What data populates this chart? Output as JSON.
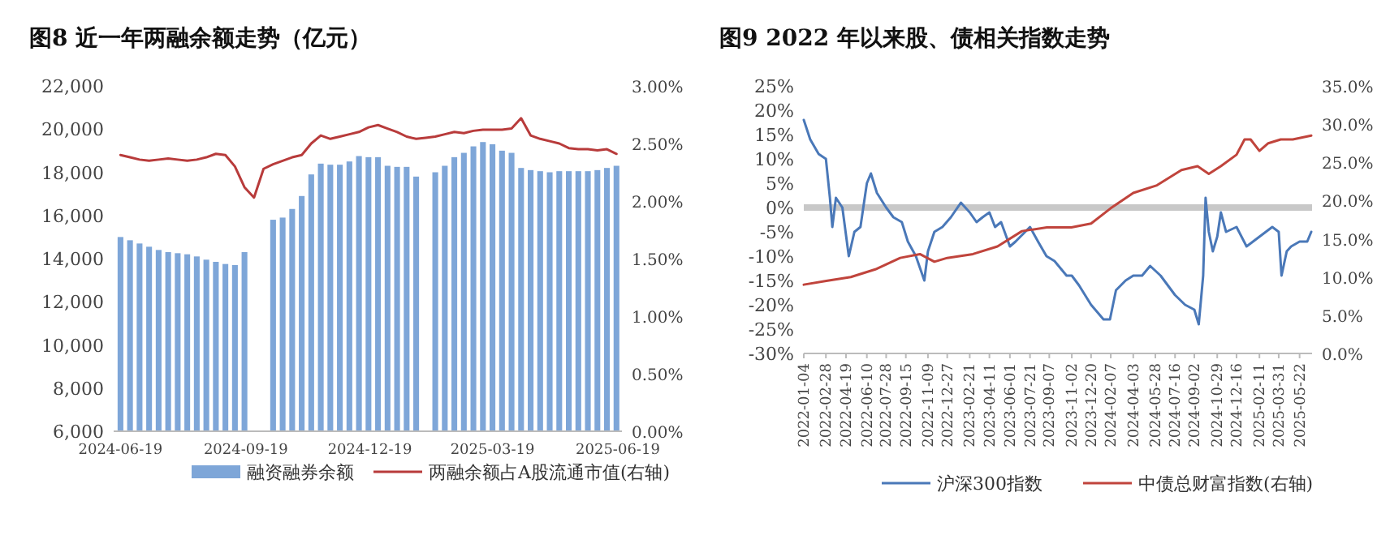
{
  "chart_data": [
    {
      "type": "bar",
      "title": "图8  近一年两融余额走势（亿元）",
      "legend": "bottom",
      "grid": false,
      "x": [
        "2024-06-19",
        "2024-06-26",
        "2024-07-03",
        "2024-07-10",
        "2024-07-17",
        "2024-07-24",
        "2024-07-31",
        "2024-08-07",
        "2024-08-14",
        "2024-08-21",
        "2024-08-28",
        "2024-09-04",
        "2024-09-11",
        "2024-09-18",
        "2024-09-25",
        "2024-10-02",
        "2024-10-09",
        "2024-10-16",
        "2024-10-23",
        "2024-10-30",
        "2024-11-06",
        "2024-11-13",
        "2024-11-20",
        "2024-11-27",
        "2024-12-04",
        "2024-12-11",
        "2024-12-18",
        "2024-12-25",
        "2025-01-01",
        "2025-01-08",
        "2025-01-15",
        "2025-01-22",
        "2025-01-29",
        "2025-02-05",
        "2025-02-12",
        "2025-02-19",
        "2025-02-26",
        "2025-03-05",
        "2025-03-12",
        "2025-03-19",
        "2025-03-26",
        "2025-04-02",
        "2025-04-09",
        "2025-04-16",
        "2025-04-23",
        "2025-04-30",
        "2025-05-07",
        "2025-05-14",
        "2025-05-21",
        "2025-05-28",
        "2025-06-04",
        "2025-06-11",
        "2025-06-18"
      ],
      "xlim": [
        "2024-06-14",
        "2025-06-22"
      ],
      "xticks": [
        "2024-06-19",
        "2024-09-19",
        "2024-12-19",
        "2025-03-19",
        "2025-06-19"
      ],
      "ylim": [
        6000,
        22000
      ],
      "yticks": [
        {
          "value": 6000,
          "label": "6,000"
        },
        {
          "value": 8000,
          "label": "8,000"
        },
        {
          "value": 10000,
          "label": "10,000"
        },
        {
          "value": 12000,
          "label": "12,000"
        },
        {
          "value": 14000,
          "label": "14,000"
        },
        {
          "value": 16000,
          "label": "16,000"
        },
        {
          "value": 18000,
          "label": "18,000"
        },
        {
          "value": 20000,
          "label": "20,000"
        },
        {
          "value": 22000,
          "label": "22,000"
        }
      ],
      "y2lim": [
        0,
        3
      ],
      "y2ticks": [
        {
          "value": 0,
          "label": "0.00%"
        },
        {
          "value": 0.5,
          "label": "0.50%"
        },
        {
          "value": 1,
          "label": "1.00%"
        },
        {
          "value": 1.5,
          "label": "1.50%"
        },
        {
          "value": 2,
          "label": "2.00%"
        },
        {
          "value": 2.5,
          "label": "2.50%"
        },
        {
          "value": 3,
          "label": "3.00%"
        }
      ],
      "series": [
        {
          "name": "融资融券余额",
          "color": "#7ea6d8",
          "values": [
            15000,
            14850,
            14700,
            14550,
            14400,
            14300,
            14250,
            14200,
            14100,
            13950,
            13850,
            13750,
            13700,
            14300,
            null,
            null,
            15800,
            15900,
            16300,
            16900,
            17900,
            18400,
            18350,
            18350,
            18500,
            18750,
            18700,
            18700,
            18300,
            18250,
            18250,
            17800,
            null,
            18000,
            18300,
            18700,
            18900,
            19200,
            19400,
            19300,
            19000,
            18900,
            18200,
            18100,
            18050,
            18000,
            18050,
            18050,
            18050,
            18050,
            18100,
            18200,
            18300
          ]
        },
        {
          "name": "两融余额占A股流通市值(右轴)",
          "type": "line",
          "axis": "y2",
          "color": "#b83b3b",
          "values": [
            2.4,
            2.38,
            2.36,
            2.35,
            2.36,
            2.37,
            2.36,
            2.35,
            2.36,
            2.38,
            2.41,
            2.4,
            2.3,
            2.12,
            2.03,
            2.28,
            2.32,
            2.35,
            2.38,
            2.4,
            2.5,
            2.57,
            2.54,
            2.56,
            2.58,
            2.6,
            2.64,
            2.66,
            2.63,
            2.6,
            2.56,
            2.54,
            2.55,
            2.56,
            2.58,
            2.6,
            2.59,
            2.61,
            2.62,
            2.62,
            2.62,
            2.63,
            2.72,
            2.57,
            2.54,
            2.52,
            2.5,
            2.46,
            2.45,
            2.45,
            2.44,
            2.45,
            2.41
          ]
        }
      ]
    },
    {
      "type": "line",
      "title": "图9  2022 年以来股、债相关指数走势",
      "legend": "bottom",
      "grid": false,
      "xlim": [
        "2022-01-04",
        "2025-06-22"
      ],
      "xticks": [
        "2022-01-04",
        "2022-02-28",
        "2022-04-19",
        "2022-06-10",
        "2022-07-28",
        "2022-09-15",
        "2022-11-09",
        "2022-12-27",
        "2023-02-21",
        "2023-04-11",
        "2023-06-01",
        "2023-07-21",
        "2023-09-07",
        "2023-11-02",
        "2023-12-20",
        "2024-02-07",
        "2024-04-03",
        "2024-05-28",
        "2024-07-16",
        "2024-09-02",
        "2024-10-29",
        "2024-12-16",
        "2025-02-11",
        "2025-03-31",
        "2025-05-22"
      ],
      "ylim": [
        -30,
        25
      ],
      "yticks": [
        {
          "value": -30,
          "label": "-30%"
        },
        {
          "value": -25,
          "label": "-25%"
        },
        {
          "value": -20,
          "label": "-20%"
        },
        {
          "value": -15,
          "label": "-15%"
        },
        {
          "value": -10,
          "label": "-10%"
        },
        {
          "value": -5,
          "label": "-5%"
        },
        {
          "value": 0,
          "label": "0%"
        },
        {
          "value": 5,
          "label": "5%"
        },
        {
          "value": 10,
          "label": "10%"
        },
        {
          "value": 15,
          "label": "15%"
        },
        {
          "value": 20,
          "label": "20%"
        },
        {
          "value": 25,
          "label": "25%"
        }
      ],
      "y2lim": [
        0,
        35
      ],
      "y2ticks": [
        {
          "value": 0,
          "label": "0.0%"
        },
        {
          "value": 5,
          "label": "5.0%"
        },
        {
          "value": 10,
          "label": "10.0%"
        },
        {
          "value": 15,
          "label": "15.0%"
        },
        {
          "value": 20,
          "label": "20.0%"
        },
        {
          "value": 25,
          "label": "25.0%"
        },
        {
          "value": 30,
          "label": "30.0%"
        },
        {
          "value": 35,
          "label": "35.0%"
        }
      ],
      "ref_lines": [
        {
          "axis": "y",
          "value": 0,
          "color": "#c8c8c8"
        }
      ],
      "series": [
        {
          "name": "沪深300指数",
          "color": "#4a78b8",
          "x": [
            "2022-01-04",
            "2022-01-20",
            "2022-02-10",
            "2022-02-28",
            "2022-03-10",
            "2022-03-16",
            "2022-03-25",
            "2022-04-10",
            "2022-04-26",
            "2022-05-10",
            "2022-05-25",
            "2022-06-10",
            "2022-06-20",
            "2022-07-05",
            "2022-07-28",
            "2022-08-15",
            "2022-09-05",
            "2022-09-20",
            "2022-10-10",
            "2022-10-31",
            "2022-11-09",
            "2022-11-25",
            "2022-12-15",
            "2023-01-05",
            "2023-01-30",
            "2023-02-21",
            "2023-03-10",
            "2023-03-25",
            "2023-04-11",
            "2023-04-25",
            "2023-05-10",
            "2023-06-01",
            "2023-06-15",
            "2023-07-21",
            "2023-08-10",
            "2023-08-31",
            "2023-09-20",
            "2023-10-20",
            "2023-11-02",
            "2023-11-20",
            "2023-12-20",
            "2024-01-20",
            "2024-02-05",
            "2024-02-20",
            "2024-03-15",
            "2024-04-03",
            "2024-04-25",
            "2024-05-15",
            "2024-06-10",
            "2024-07-16",
            "2024-08-10",
            "2024-09-02",
            "2024-09-13",
            "2024-09-24",
            "2024-09-30",
            "2024-10-08",
            "2024-10-18",
            "2024-10-29",
            "2024-11-07",
            "2024-11-20",
            "2024-12-16",
            "2025-01-10",
            "2025-02-11",
            "2025-03-15",
            "2025-03-31",
            "2025-04-07",
            "2025-04-20",
            "2025-05-01",
            "2025-05-22",
            "2025-06-10",
            "2025-06-20"
          ],
          "values": [
            18,
            14,
            11,
            10,
            2,
            -4,
            2,
            0,
            -10,
            -5,
            -4,
            5,
            7,
            3,
            0,
            -2,
            -3,
            -7,
            -10,
            -15,
            -9,
            -5,
            -4,
            -2,
            1,
            -1,
            -3,
            -2,
            -1,
            -4,
            -3,
            -8,
            -7,
            -4,
            -7,
            -10,
            -11,
            -14,
            -14,
            -16,
            -20,
            -23,
            -23,
            -17,
            -15,
            -14,
            -14,
            -12,
            -14,
            -18,
            -20,
            -21,
            -24,
            -14,
            2,
            -5,
            -9,
            -6,
            -1,
            -5,
            -4,
            -8,
            -6,
            -4,
            -5,
            -14,
            -9,
            -8,
            -7,
            -7,
            -5
          ]
        },
        {
          "name": "中债总财富指数(右轴)",
          "color": "#c0443c",
          "axis": "y2",
          "x": [
            "2022-01-04",
            "2022-03-01",
            "2022-05-01",
            "2022-07-01",
            "2022-09-01",
            "2022-10-20",
            "2022-11-25",
            "2022-12-27",
            "2023-03-01",
            "2023-05-01",
            "2023-07-01",
            "2023-09-01",
            "2023-11-01",
            "2023-12-20",
            "2024-02-07",
            "2024-04-03",
            "2024-06-01",
            "2024-08-01",
            "2024-09-10",
            "2024-10-08",
            "2024-11-07",
            "2024-12-16",
            "2025-01-05",
            "2025-01-20",
            "2025-02-11",
            "2025-03-05",
            "2025-04-05",
            "2025-05-05",
            "2025-06-20"
          ],
          "values": [
            9,
            9.5,
            10,
            11,
            12.5,
            13,
            12,
            12.5,
            13,
            14,
            16,
            16.5,
            16.5,
            17,
            19,
            21,
            22,
            24,
            24.5,
            23.5,
            24.5,
            26,
            28,
            28,
            26.5,
            27.5,
            28,
            28,
            28.5
          ]
        }
      ]
    }
  ]
}
